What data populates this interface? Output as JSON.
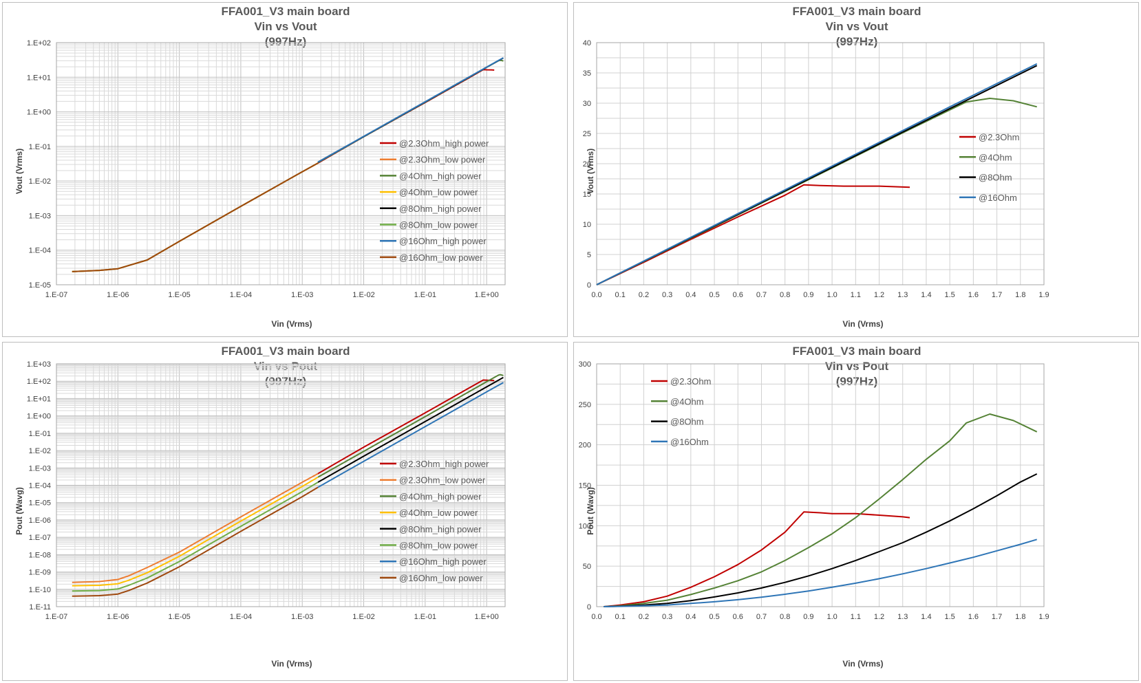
{
  "panels": [
    {
      "title_lines": [
        "FFA001_V3 main board",
        "Vin vs Vout",
        "(997Hz)"
      ],
      "type": "line",
      "scale": "log-log",
      "xlabel": "Vin (Vrms)",
      "ylabel": "Vout (Vrms)",
      "xticks": [
        "1.E-07",
        "1.E-06",
        "1.E-05",
        "1.E-04",
        "1.E-03",
        "1.E-02",
        "1.E-01",
        "1.E+00"
      ],
      "yticks": [
        "1.E-05",
        "1.E-04",
        "1.E-03",
        "1.E-02",
        "1.E-01",
        "1.E+00",
        "1.E+01",
        "1.E+02"
      ],
      "legend": [
        "@2.3Ohm_high power",
        "@2.3Ohm_low power",
        "@4Ohm_high power",
        "@4Ohm_low power",
        "@8Ohm_high power",
        "@8Ohm_low power",
        "@16Ohm_high power",
        "@16Ohm_low power"
      ]
    },
    {
      "title_lines": [
        "FFA001_V3 main board",
        "Vin vs Vout",
        "(997Hz)"
      ],
      "type": "line",
      "scale": "linear",
      "xlabel": "Vin (Vrms)",
      "ylabel": "Vout (Vrms)",
      "xticks": [
        "0.0",
        "0.1",
        "0.2",
        "0.3",
        "0.4",
        "0.5",
        "0.6",
        "0.7",
        "0.8",
        "0.9",
        "1.0",
        "1.1",
        "1.2",
        "1.3",
        "1.4",
        "1.5",
        "1.6",
        "1.7",
        "1.8",
        "1.9"
      ],
      "yticks": [
        "0",
        "5",
        "10",
        "15",
        "20",
        "25",
        "30",
        "35",
        "40"
      ],
      "legend": [
        "@2.3Ohm",
        "@4Ohm",
        "@8Ohm",
        "@16Ohm"
      ]
    },
    {
      "title_lines": [
        "FFA001_V3 main board",
        "Vin vs Pout",
        "(997Hz)"
      ],
      "type": "line",
      "scale": "log-log",
      "xlabel": "Vin (Vrms)",
      "ylabel": "Pout (Wavg)",
      "xticks": [
        "1.E-07",
        "1.E-06",
        "1.E-05",
        "1.E-04",
        "1.E-03",
        "1.E-02",
        "1.E-01",
        "1.E+00"
      ],
      "yticks": [
        "1.E-11",
        "1.E-10",
        "1.E-09",
        "1.E-08",
        "1.E-07",
        "1.E-06",
        "1.E-05",
        "1.E-04",
        "1.E-03",
        "1.E-02",
        "1.E-01",
        "1.E+00",
        "1.E+01",
        "1.E+02",
        "1.E+03"
      ],
      "legend": [
        "@2.3Ohm_high power",
        "@2.3Ohm_low power",
        "@4Ohm_high power",
        "@4Ohm_low power",
        "@8Ohm_high power",
        "@8Ohm_low power",
        "@16Ohm_high power",
        "@16Ohm_low power"
      ]
    },
    {
      "title_lines": [
        "FFA001_V3 main board",
        "Vin vs Pout",
        "(997Hz)"
      ],
      "type": "line",
      "scale": "linear",
      "xlabel": "Vin (Vrms)",
      "ylabel": "Pout (Wavg)",
      "xticks": [
        "0.0",
        "0.1",
        "0.2",
        "0.3",
        "0.4",
        "0.5",
        "0.6",
        "0.7",
        "0.8",
        "0.9",
        "1.0",
        "1.1",
        "1.2",
        "1.3",
        "1.4",
        "1.5",
        "1.6",
        "1.7",
        "1.8",
        "1.9"
      ],
      "yticks": [
        "0",
        "50",
        "100",
        "150",
        "200",
        "250",
        "300"
      ],
      "legend": [
        "@2.3Ohm",
        "@4Ohm",
        "@8Ohm",
        "@16Ohm"
      ]
    }
  ],
  "chart_data": [
    {
      "type": "line",
      "title": "FFA001_V3 main board Vin vs Vout (997Hz)",
      "xlabel": "Vin (Vrms)",
      "ylabel": "Vout (Vrms)",
      "xscale": "log",
      "yscale": "log",
      "xlim": [
        1e-07,
        2
      ],
      "ylim": [
        1e-05,
        100
      ],
      "grid": true,
      "legend_position": "right",
      "series": [
        {
          "name": "@2.3Ohm_high power",
          "color": "#c00000",
          "x": [
            0.0018,
            0.01,
            0.1,
            0.5,
            0.88,
            1.0,
            1.2,
            1.33
          ],
          "y": [
            0.033,
            0.19,
            1.85,
            9.3,
            16.5,
            16.4,
            16.3,
            16.1
          ]
        },
        {
          "name": "@2.3Ohm_low power",
          "color": "#ed7d31",
          "x": [
            1.8e-07,
            5e-07,
            1e-06,
            3e-06,
            1e-05,
            0.0001,
            0.001,
            0.0018
          ],
          "y": [
            2.4e-05,
            2.6e-05,
            2.9e-05,
            5.2e-05,
            0.00018,
            0.00185,
            0.0185,
            0.033
          ]
        },
        {
          "name": "@4Ohm_high power",
          "color": "#548235",
          "x": [
            0.0018,
            0.01,
            0.1,
            0.5,
            1.0,
            1.57,
            1.67,
            1.77,
            1.87
          ],
          "y": [
            0.034,
            0.19,
            1.9,
            9.6,
            19.3,
            30.2,
            30.8,
            30.4,
            29.4
          ]
        },
        {
          "name": "@4Ohm_low power",
          "color": "#ffc000",
          "x": [
            1.8e-07,
            5e-07,
            1e-06,
            3e-06,
            1e-05,
            0.0001,
            0.001,
            0.0018
          ],
          "y": [
            2.4e-05,
            2.6e-05,
            2.9e-05,
            5.2e-05,
            0.00018,
            0.00185,
            0.0185,
            0.033
          ]
        },
        {
          "name": "@8Ohm_high power",
          "color": "#000000",
          "x": [
            0.0018,
            0.01,
            0.1,
            0.5,
            1.0,
            1.5,
            1.87
          ],
          "y": [
            0.035,
            0.193,
            1.93,
            9.7,
            19.4,
            29.1,
            36.2
          ]
        },
        {
          "name": "@8Ohm_low power",
          "color": "#70ad47",
          "x": [
            1.8e-07,
            5e-07,
            1e-06,
            3e-06,
            1e-05,
            0.0001,
            0.001,
            0.0018
          ],
          "y": [
            2.4e-05,
            2.6e-05,
            2.9e-05,
            5.2e-05,
            0.00018,
            0.00185,
            0.0185,
            0.033
          ]
        },
        {
          "name": "@16Ohm_high power",
          "color": "#2e75b6",
          "x": [
            0.0018,
            0.01,
            0.1,
            0.5,
            1.0,
            1.5,
            1.87
          ],
          "y": [
            0.035,
            0.195,
            1.95,
            9.8,
            19.6,
            29.4,
            36.5
          ]
        },
        {
          "name": "@16Ohm_low power",
          "color": "#9e480e",
          "x": [
            1.8e-07,
            5e-07,
            1e-06,
            3e-06,
            1e-05,
            0.0001,
            0.001,
            0.0018
          ],
          "y": [
            2.4e-05,
            2.6e-05,
            2.9e-05,
            5.2e-05,
            0.00018,
            0.00185,
            0.0185,
            0.033
          ]
        }
      ]
    },
    {
      "type": "line",
      "title": "FFA001_V3 main board Vin vs Vout (997Hz)",
      "xlabel": "Vin (Vrms)",
      "ylabel": "Vout (Vrms)",
      "xlim": [
        0,
        1.9
      ],
      "ylim": [
        0,
        40
      ],
      "grid": true,
      "legend_position": "right",
      "series": [
        {
          "name": "@2.3Ohm",
          "color": "#c00000",
          "x": [
            0,
            0.2,
            0.4,
            0.6,
            0.8,
            0.88,
            0.95,
            1.05,
            1.2,
            1.33
          ],
          "y": [
            0,
            3.7,
            7.5,
            11.2,
            14.8,
            16.5,
            16.4,
            16.3,
            16.3,
            16.1
          ]
        },
        {
          "name": "@4Ohm",
          "color": "#548235",
          "x": [
            0,
            0.5,
            1.0,
            1.3,
            1.57,
            1.67,
            1.77,
            1.87
          ],
          "y": [
            0,
            9.6,
            19.3,
            25.1,
            30.2,
            30.8,
            30.4,
            29.4
          ]
        },
        {
          "name": "@8Ohm",
          "color": "#000000",
          "x": [
            0,
            0.5,
            1.0,
            1.5,
            1.87
          ],
          "y": [
            0,
            9.7,
            19.4,
            29.1,
            36.2
          ]
        },
        {
          "name": "@16Ohm",
          "color": "#2e75b6",
          "x": [
            0,
            0.5,
            1.0,
            1.5,
            1.87
          ],
          "y": [
            0,
            9.8,
            19.6,
            29.4,
            36.5
          ]
        }
      ]
    },
    {
      "type": "line",
      "title": "FFA001_V3 main board Vin vs Pout (997Hz)",
      "xlabel": "Vin (Vrms)",
      "ylabel": "Pout (Wavg)",
      "xscale": "log",
      "yscale": "log",
      "xlim": [
        1e-07,
        2
      ],
      "ylim": [
        1e-11,
        1000
      ],
      "grid": true,
      "legend_position": "right",
      "series": [
        {
          "name": "@2.3Ohm_high power",
          "color": "#c00000",
          "x": [
            0.0018,
            0.01,
            0.1,
            0.5,
            0.88,
            1.0,
            1.33
          ],
          "y": [
            0.00047,
            0.0157,
            1.49,
            37.6,
            117,
            115,
            110
          ]
        },
        {
          "name": "@2.3Ohm_low power",
          "color": "#ed7d31",
          "x": [
            1.8e-07,
            5e-07,
            1e-06,
            1.5e-06,
            3e-06,
            1e-05,
            0.0001,
            0.001,
            0.0018
          ],
          "y": [
            2.5e-10,
            2.8e-10,
            3.7e-10,
            6e-10,
            1.8e-09,
            1.4e-08,
            1.5e-06,
            0.00015,
            0.00047
          ]
        },
        {
          "name": "@4Ohm_high power",
          "color": "#548235",
          "x": [
            0.0018,
            0.01,
            0.1,
            0.5,
            1.0,
            1.57,
            1.67,
            1.87
          ],
          "y": [
            0.00029,
            0.009,
            0.9,
            23,
            93,
            228,
            238,
            216
          ]
        },
        {
          "name": "@4Ohm_low power",
          "color": "#ffc000",
          "x": [
            1.8e-07,
            5e-07,
            1e-06,
            1.5e-06,
            3e-06,
            1e-05,
            0.0001,
            0.001,
            0.0018
          ],
          "y": [
            1.6e-10,
            1.7e-10,
            2.1e-10,
            3.3e-10,
            9e-10,
            8e-09,
            8.6e-07,
            8.6e-05,
            0.00029
          ]
        },
        {
          "name": "@8Ohm_high power",
          "color": "#000000",
          "x": [
            0.0018,
            0.01,
            0.1,
            0.5,
            1.0,
            1.5,
            1.87
          ],
          "y": [
            0.00015,
            0.0047,
            0.47,
            11.8,
            47,
            106,
            164
          ]
        },
        {
          "name": "@8Ohm_low power",
          "color": "#70ad47",
          "x": [
            1.8e-07,
            5e-07,
            1e-06,
            1.5e-06,
            3e-06,
            1e-05,
            0.0001,
            0.001,
            0.0018
          ],
          "y": [
            8e-11,
            8.5e-11,
            1.05e-10,
            1.7e-10,
            4.5e-10,
            4e-09,
            4.3e-07,
            4.3e-05,
            0.00015
          ]
        },
        {
          "name": "@16Ohm_high power",
          "color": "#2e75b6",
          "x": [
            0.0018,
            0.01,
            0.1,
            0.5,
            1.0,
            1.5,
            1.87
          ],
          "y": [
            7.6e-05,
            0.0024,
            0.24,
            6,
            24,
            54,
            83
          ]
        },
        {
          "name": "@16Ohm_low power",
          "color": "#9e480e",
          "x": [
            1.8e-07,
            5e-07,
            1e-06,
            1.5e-06,
            3e-06,
            1e-05,
            0.0001,
            0.001,
            0.0018
          ],
          "y": [
            4e-11,
            4.3e-11,
            5.3e-11,
            8.5e-11,
            2.3e-10,
            2e-09,
            2.2e-07,
            2.2e-05,
            7.6e-05
          ]
        }
      ]
    },
    {
      "type": "line",
      "title": "FFA001_V3 main board Vin vs Pout (997Hz)",
      "xlabel": "Vin (Vrms)",
      "ylabel": "Pout (Wavg)",
      "xlim": [
        0,
        1.9
      ],
      "ylim": [
        0,
        300
      ],
      "grid": true,
      "legend_position": "top-left",
      "series": [
        {
          "name": "@2.3Ohm",
          "color": "#c00000",
          "x": [
            0.03,
            0.1,
            0.2,
            0.3,
            0.4,
            0.5,
            0.6,
            0.7,
            0.8,
            0.88,
            0.95,
            1.0,
            1.1,
            1.2,
            1.3,
            1.33
          ],
          "y": [
            0,
            2,
            6,
            13,
            24,
            37,
            52,
            70,
            92,
            117,
            116,
            115,
            115,
            113,
            111,
            110
          ]
        },
        {
          "name": "@4Ohm",
          "color": "#548235",
          "x": [
            0.03,
            0.1,
            0.2,
            0.3,
            0.4,
            0.5,
            0.6,
            0.7,
            0.8,
            0.9,
            1.0,
            1.1,
            1.2,
            1.3,
            1.4,
            1.5,
            1.57,
            1.67,
            1.77,
            1.87
          ],
          "y": [
            0,
            1,
            4,
            8,
            15,
            23,
            32,
            43,
            57,
            73,
            90,
            110,
            133,
            157,
            182,
            205,
            227,
            238,
            230,
            216
          ]
        },
        {
          "name": "@8Ohm",
          "color": "#000000",
          "x": [
            0.03,
            0.1,
            0.2,
            0.3,
            0.4,
            0.5,
            0.6,
            0.7,
            0.8,
            0.9,
            1.0,
            1.1,
            1.2,
            1.3,
            1.4,
            1.5,
            1.6,
            1.7,
            1.8,
            1.87
          ],
          "y": [
            0,
            0.5,
            2,
            4,
            7.5,
            12,
            17,
            23,
            30,
            38,
            47,
            57,
            68,
            79,
            92,
            106,
            121,
            137,
            154,
            164
          ]
        },
        {
          "name": "@16Ohm",
          "color": "#2e75b6",
          "x": [
            0.03,
            0.1,
            0.2,
            0.3,
            0.4,
            0.5,
            0.6,
            0.7,
            0.8,
            0.9,
            1.0,
            1.1,
            1.2,
            1.3,
            1.4,
            1.5,
            1.6,
            1.7,
            1.8,
            1.87
          ],
          "y": [
            0,
            0.3,
            1,
            2,
            4,
            6,
            8.6,
            11.7,
            15.3,
            19.4,
            24,
            29,
            34.5,
            40.5,
            47,
            54,
            61,
            69,
            77,
            83
          ]
        }
      ]
    }
  ]
}
